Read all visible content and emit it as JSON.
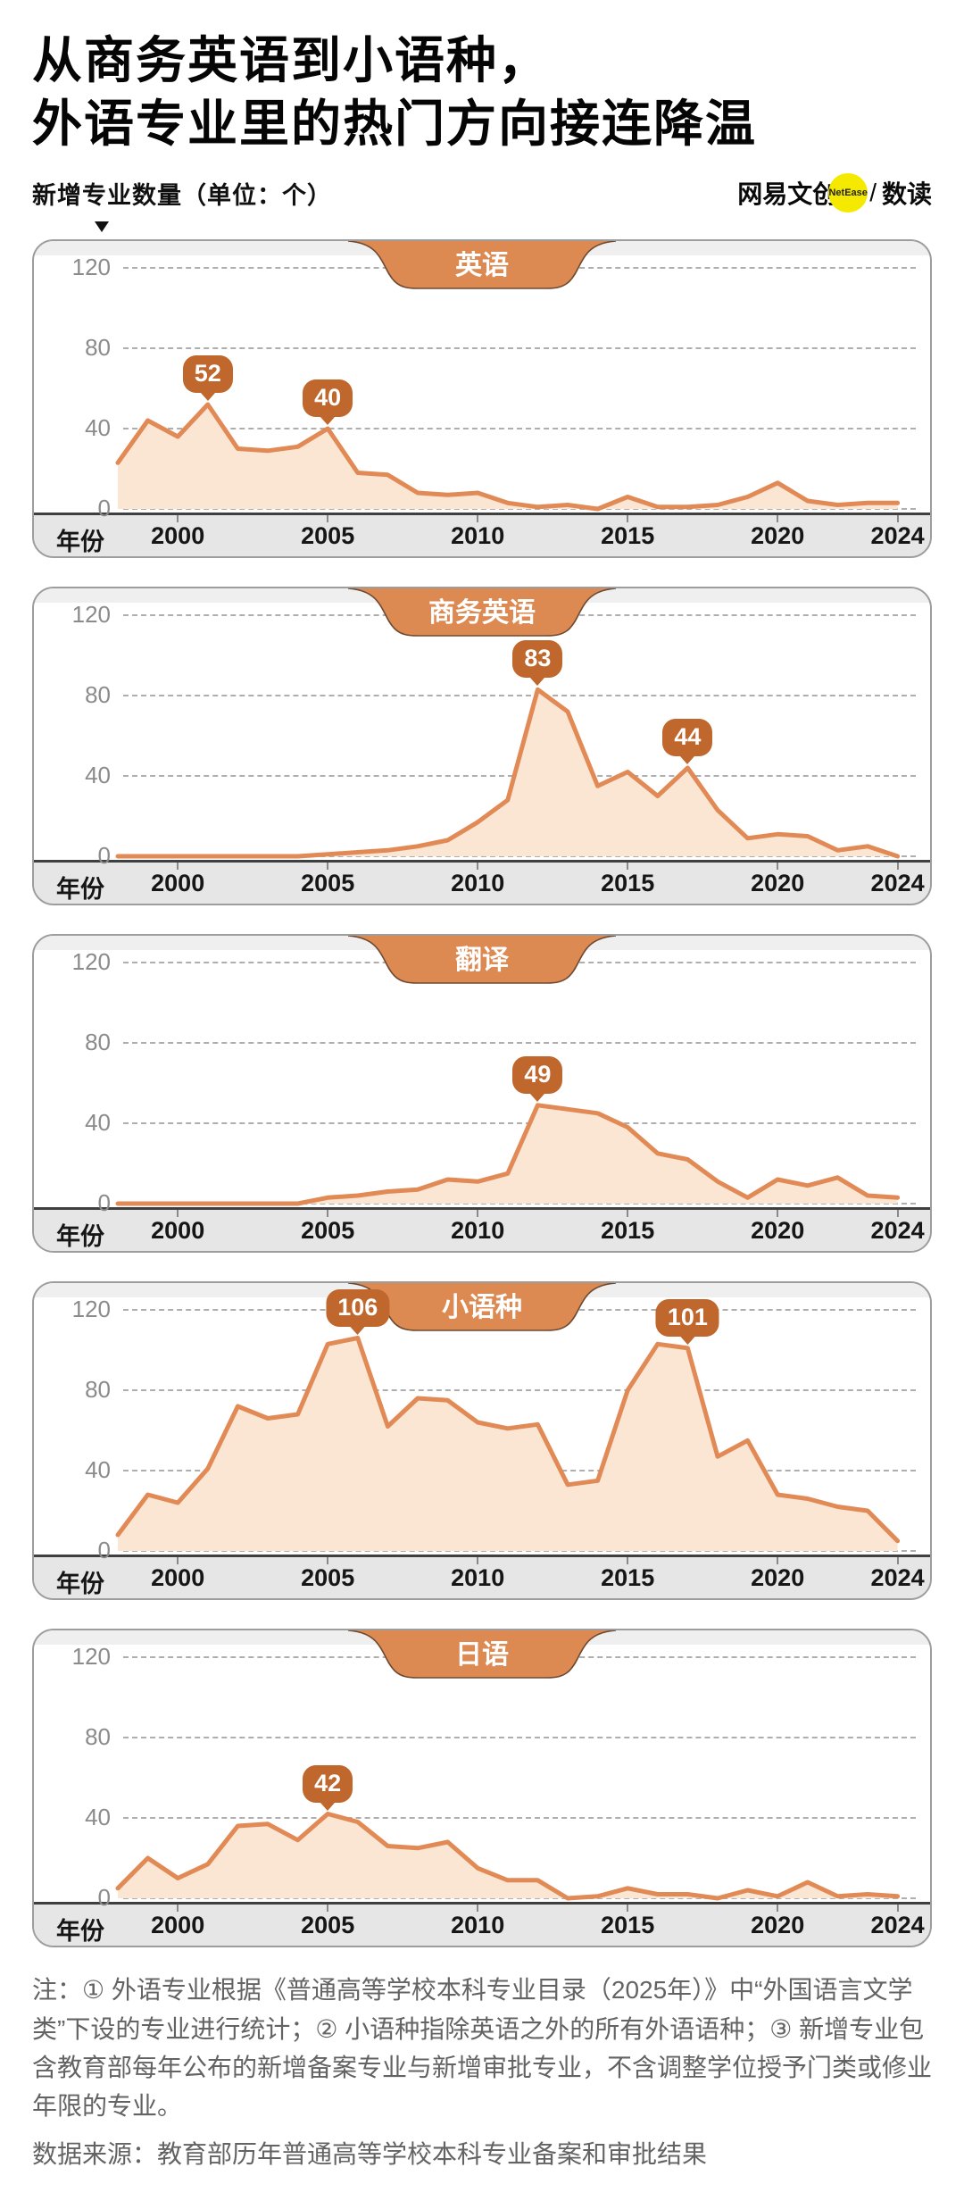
{
  "title": {
    "line1": "从商务英语到小语种，",
    "line2": "外语专业里的热门方向接连降温"
  },
  "subtitle": "新增专业数量（单位：个）",
  "brand": {
    "name": "网易文创",
    "badge": "NetEase",
    "divider": "/",
    "sub": "数读"
  },
  "axis": {
    "x_label": "年份",
    "x_ticks": [
      2000,
      2005,
      2010,
      2015,
      2020,
      2024
    ],
    "y_ticks": [
      0,
      40,
      80,
      120
    ],
    "ylim": [
      0,
      120
    ],
    "grid": "dashed horizontal"
  },
  "years": [
    1998,
    1999,
    2000,
    2001,
    2002,
    2003,
    2004,
    2005,
    2006,
    2007,
    2008,
    2009,
    2010,
    2011,
    2012,
    2013,
    2014,
    2015,
    2016,
    2017,
    2018,
    2019,
    2020,
    2021,
    2022,
    2023,
    2024
  ],
  "colors": {
    "line": "#e18a55",
    "area_fill": "#fbe5d3",
    "bubble": "#bf672c",
    "tab": "#dd8a52",
    "badge": "#f5e900"
  },
  "chart_data": [
    {
      "type": "area",
      "title": "英语",
      "values": [
        23,
        44,
        36,
        52,
        30,
        29,
        31,
        40,
        18,
        17,
        8,
        7,
        8,
        3,
        1,
        2,
        0,
        6,
        1,
        1,
        2,
        6,
        13,
        4,
        2,
        3,
        3
      ],
      "annotations": [
        {
          "year": 2001,
          "value": 52
        },
        {
          "year": 2005,
          "value": 40
        }
      ]
    },
    {
      "type": "area",
      "title": "商务英语",
      "values": [
        0,
        0,
        0,
        0,
        0,
        0,
        0,
        1,
        2,
        3,
        5,
        8,
        17,
        28,
        83,
        72,
        35,
        42,
        30,
        44,
        23,
        9,
        11,
        10,
        3,
        5,
        0
      ],
      "annotations": [
        {
          "year": 2012,
          "value": 83
        },
        {
          "year": 2017,
          "value": 44
        }
      ]
    },
    {
      "type": "area",
      "title": "翻译",
      "values": [
        0,
        0,
        0,
        0,
        0,
        0,
        0,
        3,
        4,
        6,
        7,
        12,
        11,
        15,
        49,
        47,
        45,
        38,
        25,
        22,
        11,
        3,
        12,
        9,
        13,
        4,
        3
      ],
      "annotations": [
        {
          "year": 2012,
          "value": 49
        }
      ]
    },
    {
      "type": "area",
      "title": "小语种",
      "values": [
        8,
        28,
        24,
        41,
        72,
        66,
        68,
        103,
        106,
        62,
        76,
        75,
        64,
        61,
        63,
        33,
        35,
        80,
        103,
        101,
        47,
        55,
        28,
        26,
        22,
        20,
        5
      ],
      "annotations": [
        {
          "year": 2006,
          "value": 106
        },
        {
          "year": 2017,
          "value": 101
        }
      ]
    },
    {
      "type": "area",
      "title": "日语",
      "values": [
        5,
        20,
        10,
        17,
        36,
        37,
        29,
        42,
        38,
        26,
        25,
        28,
        15,
        9,
        9,
        0,
        1,
        5,
        2,
        2,
        0,
        4,
        1,
        8,
        1,
        2,
        1
      ],
      "annotations": [
        {
          "year": 2005,
          "value": 42
        }
      ]
    }
  ],
  "footnotes": {
    "note": "注：① 外语专业根据《普通高等学校本科专业目录（2025年）》中“外国语言文学类”下设的专业进行统计；② 小语种指除英语之外的所有外语语种；③ 新增专业包含教育部每年公布的新增备案专业与新增审批专业，不含调整学位授予门类或修业年限的专业。",
    "source": "数据来源：教育部历年普通高等学校本科专业备案和审批结果"
  }
}
